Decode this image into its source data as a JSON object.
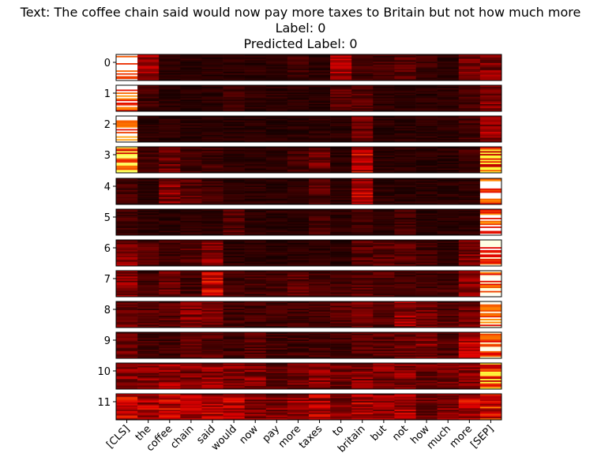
{
  "chart_data": {
    "type": "heatmap",
    "title_lines": [
      "Text: The coffee chain said would now pay more taxes to Britain but not how much more",
      "Label: 0",
      "Predicted Label: 0"
    ],
    "colormap": "hot",
    "colors": {
      "cmap_stops": [
        "#000000",
        "#e00000",
        "#ff8000",
        "#ffff40",
        "#ffffff"
      ]
    },
    "xlabel": "",
    "ylabel": "",
    "layers": [
      "0",
      "1",
      "2",
      "3",
      "4",
      "5",
      "6",
      "7",
      "8",
      "9",
      "10",
      "11"
    ],
    "tokens": [
      "[CLS]",
      "the",
      "coffee",
      "chain",
      "said",
      "would",
      "now",
      "pay",
      "more",
      "taxes",
      "to",
      "britain",
      "but",
      "not",
      "how",
      "much",
      "more",
      "[SEP]"
    ],
    "dominant_attention": [
      [
        0.95,
        0.35,
        0.1,
        0.1,
        0.1,
        0.1,
        0.1,
        0.1,
        0.15,
        0.1,
        0.4,
        0.15,
        0.15,
        0.2,
        0.15,
        0.1,
        0.25,
        0.3
      ],
      [
        0.95,
        0.15,
        0.1,
        0.1,
        0.1,
        0.15,
        0.1,
        0.1,
        0.1,
        0.1,
        0.2,
        0.2,
        0.1,
        0.1,
        0.1,
        0.1,
        0.15,
        0.3
      ],
      [
        0.95,
        0.1,
        0.1,
        0.1,
        0.1,
        0.1,
        0.1,
        0.1,
        0.1,
        0.1,
        0.1,
        0.25,
        0.1,
        0.1,
        0.1,
        0.1,
        0.15,
        0.35
      ],
      [
        0.8,
        0.15,
        0.25,
        0.15,
        0.15,
        0.1,
        0.1,
        0.1,
        0.15,
        0.25,
        0.1,
        0.45,
        0.1,
        0.1,
        0.1,
        0.1,
        0.15,
        0.75
      ],
      [
        0.15,
        0.1,
        0.3,
        0.2,
        0.15,
        0.1,
        0.1,
        0.1,
        0.1,
        0.2,
        0.1,
        0.4,
        0.1,
        0.1,
        0.1,
        0.1,
        0.1,
        0.95
      ],
      [
        0.15,
        0.1,
        0.1,
        0.1,
        0.1,
        0.2,
        0.1,
        0.1,
        0.1,
        0.15,
        0.1,
        0.15,
        0.1,
        0.15,
        0.1,
        0.1,
        0.1,
        0.95
      ],
      [
        0.3,
        0.2,
        0.15,
        0.2,
        0.3,
        0.1,
        0.1,
        0.1,
        0.1,
        0.1,
        0.1,
        0.2,
        0.2,
        0.2,
        0.15,
        0.1,
        0.3,
        0.9
      ],
      [
        0.3,
        0.15,
        0.25,
        0.15,
        0.45,
        0.15,
        0.15,
        0.15,
        0.2,
        0.15,
        0.15,
        0.2,
        0.2,
        0.15,
        0.15,
        0.15,
        0.3,
        0.9
      ],
      [
        0.25,
        0.2,
        0.2,
        0.3,
        0.3,
        0.15,
        0.15,
        0.15,
        0.15,
        0.15,
        0.2,
        0.25,
        0.2,
        0.35,
        0.3,
        0.2,
        0.25,
        0.9
      ],
      [
        0.25,
        0.15,
        0.15,
        0.2,
        0.2,
        0.15,
        0.2,
        0.15,
        0.15,
        0.15,
        0.15,
        0.2,
        0.2,
        0.25,
        0.3,
        0.2,
        0.4,
        0.9
      ],
      [
        0.3,
        0.3,
        0.35,
        0.3,
        0.35,
        0.3,
        0.3,
        0.2,
        0.25,
        0.3,
        0.25,
        0.3,
        0.3,
        0.3,
        0.25,
        0.25,
        0.3,
        0.75
      ],
      [
        0.45,
        0.4,
        0.45,
        0.4,
        0.4,
        0.4,
        0.3,
        0.3,
        0.35,
        0.4,
        0.3,
        0.4,
        0.35,
        0.4,
        0.25,
        0.3,
        0.45,
        0.6
      ]
    ],
    "value_range": [
      0,
      1
    ],
    "grid": false,
    "legend": "none"
  }
}
